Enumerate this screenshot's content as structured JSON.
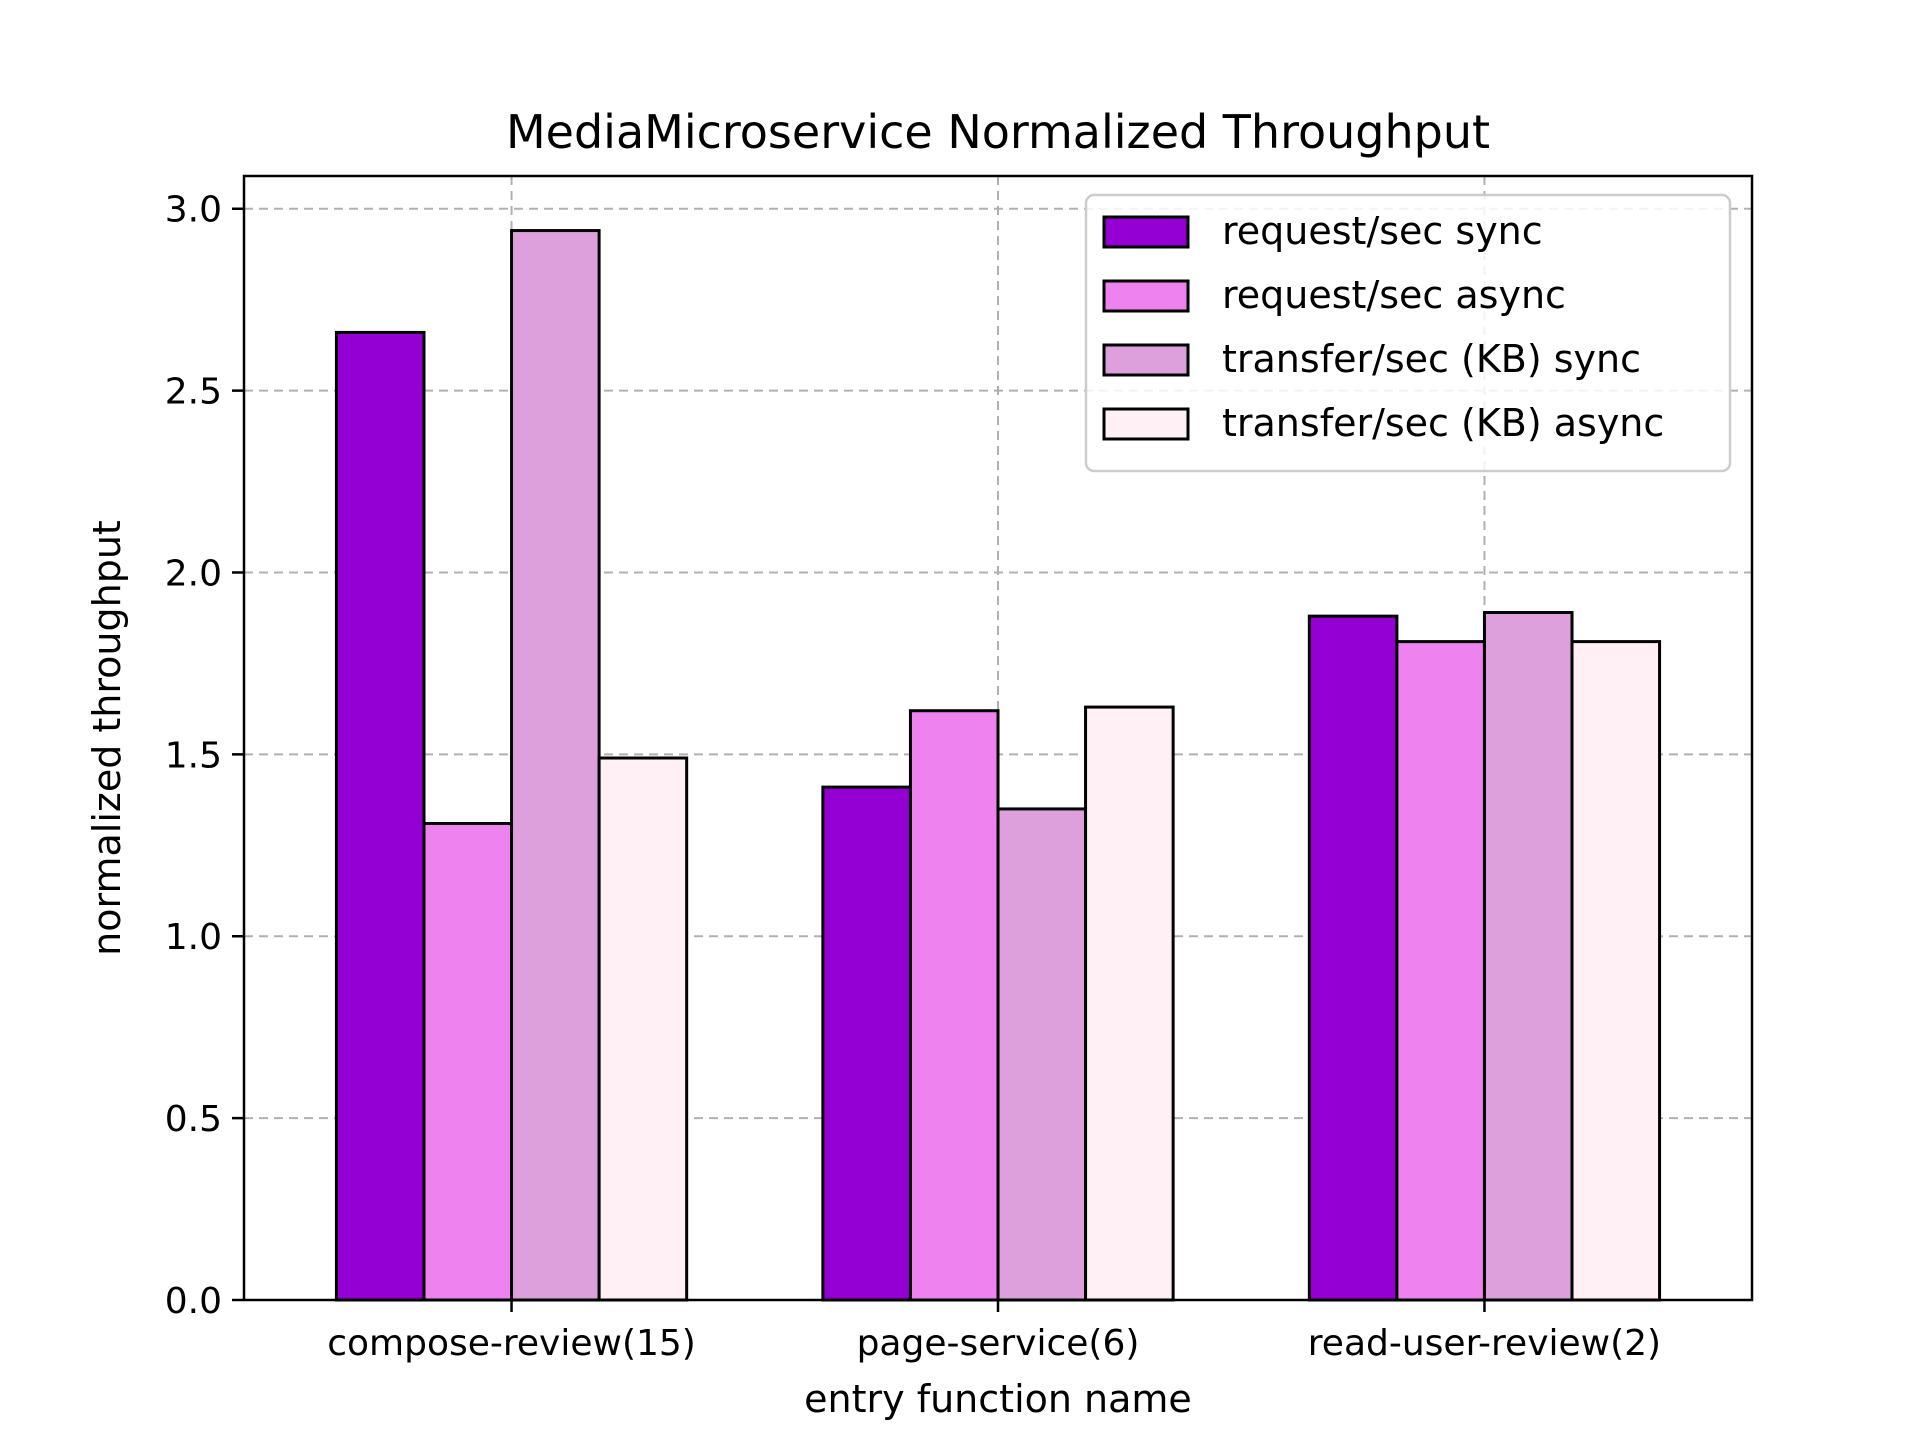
{
  "chart_data": {
    "type": "bar",
    "title": "MediaMicroservice Normalized Throughput",
    "xlabel": "entry function name",
    "ylabel": "normalized throughput",
    "categories": [
      "compose-review(15)",
      "page-service(6)",
      "read-user-review(2)"
    ],
    "series": [
      {
        "name": "request/sec sync",
        "color": "#9400d3",
        "values": [
          2.66,
          1.41,
          1.88
        ]
      },
      {
        "name": "request/sec async",
        "color": "#ee82ee",
        "values": [
          1.31,
          1.62,
          1.81
        ]
      },
      {
        "name": "transfer/sec (KB) sync",
        "color": "#dda0dd",
        "values": [
          2.94,
          1.35,
          1.89
        ]
      },
      {
        "name": "transfer/sec (KB) async",
        "color": "#fff0f5",
        "values": [
          1.49,
          1.63,
          1.81
        ]
      }
    ],
    "ylim": [
      0,
      3.09
    ],
    "yticks": [
      "0.0",
      "0.5",
      "1.0",
      "1.5",
      "2.0",
      "2.5",
      "3.0"
    ],
    "grid": true,
    "legend_position": "top-right"
  }
}
